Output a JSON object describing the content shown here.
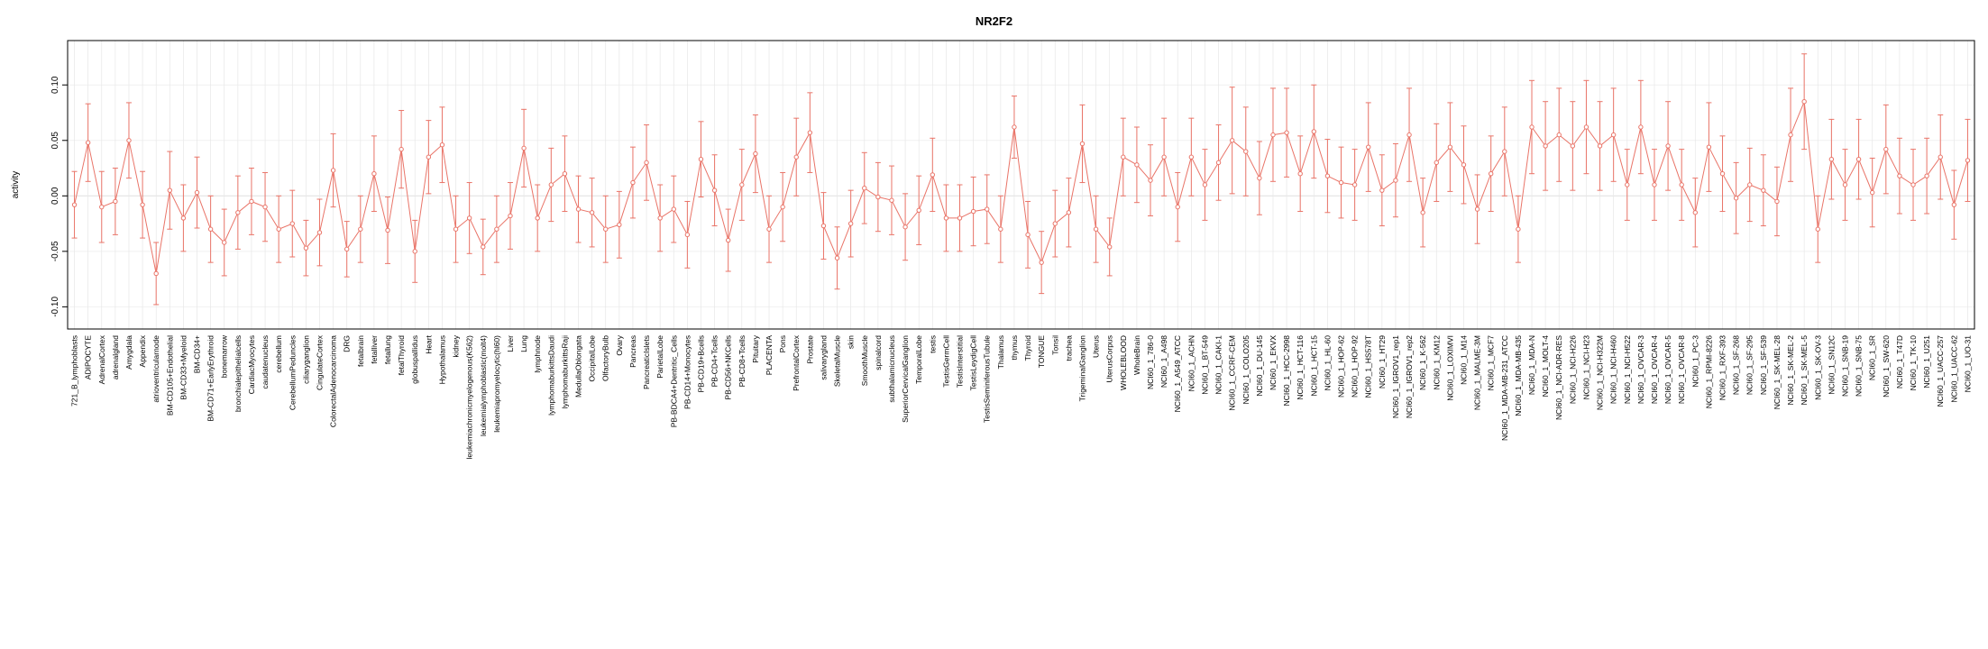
{
  "chart_data": {
    "type": "line",
    "title": "NR2F2",
    "ylabel": "activity",
    "xlabel": "",
    "ylim": [
      -0.12,
      0.14
    ],
    "yticks": [
      -0.1,
      -0.05,
      0.0,
      0.05,
      0.1
    ],
    "grid": "vertical-light-gray-per-category",
    "legend": "none",
    "point_style": "open-circle-with-error-bars",
    "colors": {
      "series": "#e97468",
      "grid": "#e7e7e7",
      "zero_line": "#e0e0e0",
      "axis": "#000000",
      "background": "#ffffff"
    },
    "categories": [
      "721_B_lymphoblasts",
      "ADIPOCYTE",
      "AdrenalCortex",
      "adrenalgland",
      "Amygdala",
      "Appendix",
      "atrioventricularnode",
      "BM-CD105+Endothelial",
      "BM-CD33+Myeloid",
      "BM-CD34+",
      "BM-CD71+EarlyErythroid",
      "bonemarrow",
      "bronchialepithelialcells",
      "CardiacMyocytes",
      "caudatenucleus",
      "cerebellum",
      "CerebellumPeduncles",
      "ciliaryganglion",
      "CingulateCortex",
      "ColorectalAdenocarcinoma",
      "DRG",
      "fetalbrain",
      "fetalliver",
      "fetallung",
      "fetalThyroid",
      "globuspallidus",
      "Heart",
      "Hypothalamus",
      "kidney",
      "leukemiachronicmyelogenous(K562)",
      "leukemialymphoblastic(molt4)",
      "leukemiapromyelocytic(hl60)",
      "Liver",
      "Lung",
      "lymphnode",
      "lymphomaburkittsDaudi",
      "lymphomaburkittsRaji",
      "MedullaOblongata",
      "OccipitalLobe",
      "OlfactoryBulb",
      "Ovary",
      "Pancreas",
      "PancreaticIslets",
      "ParietalLobe",
      "PB-BDCA4+Dentritic_Cells",
      "PB-CD14+Monocytes",
      "PB-CD19+Bcells",
      "PB-CD4+Tcells",
      "PB-CD56+NKCells",
      "PB-CD8+Tcells",
      "Pituitary",
      "PLACENTA",
      "Pons",
      "PrefrontalCortex",
      "Prostate",
      "salivarygland",
      "SkeletalMuscle",
      "skin",
      "SmoothMuscle",
      "spinalcord",
      "subthalamicnucleus",
      "SuperiorCervicalGanglion",
      "TemporalLobe",
      "testis",
      "TestisGermCell",
      "TestisInterstitial",
      "TestisLeydigCell",
      "TestisSeminiferousTubule",
      "Thalamus",
      "thymus",
      "Thyroid",
      "TONGUE",
      "Tonsil",
      "trachea",
      "TrigeminalGanglion",
      "Uterus",
      "UterusCorpus",
      "WHOLEBLOOD",
      "WholeBrain",
      "NCI60_1_786-0",
      "NCI60_1_A498",
      "NCI60_1_A549_ATCC",
      "NCI60_1_ACHN",
      "NCI60_1_BT-549",
      "NCI60_1_CAKI-1",
      "NCI60_1_CCRF-CEM",
      "NCI60_1_COLO205",
      "NCI60_1_DU-145",
      "NCI60_1_EKVX",
      "NCI60_1_HCC-2998",
      "NCI60_1_HCT-116",
      "NCI60_1_HCT-15",
      "NCI60_1_HL-60",
      "NCI60_1_HOP-62",
      "NCI60_1_HOP-92",
      "NCI60_1_HS578T",
      "NCI60_1_HT29",
      "NCI60_1_IGROV1_rep1",
      "NCI60_1_IGROV1_rep2",
      "NCI60_1_K-562",
      "NCI60_1_KM12",
      "NCI60_1_LOXIMVI",
      "NCI60_1_M14",
      "NCI60_1_MALME-3M",
      "NCI60_1_MCF7",
      "NCI60_1_MDA-MB-231_ATCC",
      "NCI60_1_MDA-MB-435",
      "NCI60_1_MDA-N",
      "NCI60_1_MOLT-4",
      "NCI60_1_NCI-ADR-RES",
      "NCI60_1_NCI-H226",
      "NCI60_1_NCI-H23",
      "NCI60_1_NCI-H322M",
      "NCI60_1_NCI-H460",
      "NCI60_1_NCI-H522",
      "NCI60_1_OVCAR-3",
      "NCI60_1_OVCAR-4",
      "NCI60_1_OVCAR-5",
      "NCI60_1_OVCAR-8",
      "NCI60_1_PC-3",
      "NCI60_1_RPMI-8226",
      "NCI60_1_RXF-393",
      "NCI60_1_SF-268",
      "NCI60_1_SF-295",
      "NCI60_1_SF-539",
      "NCI60_1_SK-MEL-28",
      "NCI60_1_SK-MEL-2",
      "NCI60_1_SK-MEL-5",
      "NCI60_1_SK-OV-3",
      "NCI60_1_SN12C",
      "NCI60_1_SNB-19",
      "NCI60_1_SNB-75",
      "NCI60_1_SR",
      "NCI60_1_SW-620",
      "NCI60_1_T47D",
      "NCI60_1_TK-10",
      "NCI60_1_U251",
      "NCI60_1_UACC-257",
      "NCI60_1_UACC-62",
      "NCI60_1_UO-31"
    ],
    "values": [
      -0.008,
      0.048,
      -0.01,
      -0.005,
      0.05,
      -0.008,
      -0.07,
      0.005,
      -0.02,
      0.003,
      -0.03,
      -0.042,
      -0.015,
      -0.005,
      -0.01,
      -0.03,
      -0.025,
      -0.047,
      -0.033,
      0.023,
      -0.048,
      -0.03,
      0.02,
      -0.031,
      0.042,
      -0.05,
      0.035,
      0.046,
      -0.03,
      -0.02,
      -0.046,
      -0.03,
      -0.018,
      0.043,
      -0.02,
      0.01,
      0.02,
      -0.012,
      -0.015,
      -0.03,
      -0.026,
      0.012,
      0.03,
      -0.02,
      -0.012,
      -0.035,
      0.033,
      0.005,
      -0.04,
      0.01,
      0.038,
      -0.03,
      -0.01,
      0.035,
      0.057,
      -0.027,
      -0.056,
      -0.025,
      0.007,
      -0.001,
      -0.004,
      -0.028,
      -0.013,
      0.019,
      -0.02,
      -0.02,
      -0.014,
      -0.012,
      -0.03,
      0.062,
      -0.035,
      -0.06,
      -0.025,
      -0.015,
      0.047,
      -0.03,
      -0.046,
      0.035,
      0.028,
      0.014,
      0.035,
      -0.01,
      0.035,
      0.01,
      0.03,
      0.05,
      0.04,
      0.016,
      0.055,
      0.057,
      0.02,
      0.058,
      0.018,
      0.012,
      0.01,
      0.044,
      0.005,
      0.014,
      0.055,
      -0.015,
      0.03,
      0.044,
      0.028,
      -0.012,
      0.02,
      0.04,
      -0.03,
      0.062,
      0.045,
      0.055,
      0.045,
      0.062,
      0.045,
      0.055,
      0.01,
      0.062,
      0.01,
      0.045,
      0.01,
      -0.015,
      0.044,
      0.02,
      -0.002,
      0.01,
      0.005,
      -0.005,
      0.055,
      0.085,
      -0.03,
      0.033,
      0.01,
      0.033,
      0.003,
      0.042,
      0.018,
      0.01,
      0.018,
      0.035,
      -0.008,
      0.032
    ],
    "errors": [
      0.03,
      0.035,
      0.032,
      0.03,
      0.034,
      0.03,
      0.028,
      0.035,
      0.03,
      0.032,
      0.03,
      0.03,
      0.033,
      0.03,
      0.031,
      0.03,
      0.03,
      0.025,
      0.03,
      0.033,
      0.025,
      0.03,
      0.034,
      0.03,
      0.035,
      0.028,
      0.033,
      0.034,
      0.03,
      0.032,
      0.025,
      0.03,
      0.03,
      0.035,
      0.03,
      0.033,
      0.034,
      0.03,
      0.031,
      0.03,
      0.03,
      0.032,
      0.034,
      0.03,
      0.03,
      0.03,
      0.034,
      0.032,
      0.028,
      0.032,
      0.035,
      0.03,
      0.031,
      0.035,
      0.036,
      0.03,
      0.028,
      0.03,
      0.032,
      0.031,
      0.031,
      0.03,
      0.031,
      0.033,
      0.03,
      0.03,
      0.031,
      0.031,
      0.03,
      0.028,
      0.03,
      0.028,
      0.03,
      0.031,
      0.035,
      0.03,
      0.026,
      0.035,
      0.034,
      0.032,
      0.035,
      0.031,
      0.035,
      0.032,
      0.034,
      0.048,
      0.04,
      0.033,
      0.042,
      0.04,
      0.034,
      0.042,
      0.033,
      0.032,
      0.032,
      0.04,
      0.032,
      0.033,
      0.042,
      0.031,
      0.035,
      0.04,
      0.035,
      0.031,
      0.034,
      0.04,
      0.03,
      0.042,
      0.04,
      0.042,
      0.04,
      0.042,
      0.04,
      0.042,
      0.032,
      0.042,
      0.032,
      0.04,
      0.032,
      0.031,
      0.04,
      0.034,
      0.032,
      0.033,
      0.032,
      0.031,
      0.042,
      0.043,
      0.03,
      0.036,
      0.032,
      0.036,
      0.031,
      0.04,
      0.034,
      0.032,
      0.034,
      0.038,
      0.031,
      0.037
    ]
  }
}
